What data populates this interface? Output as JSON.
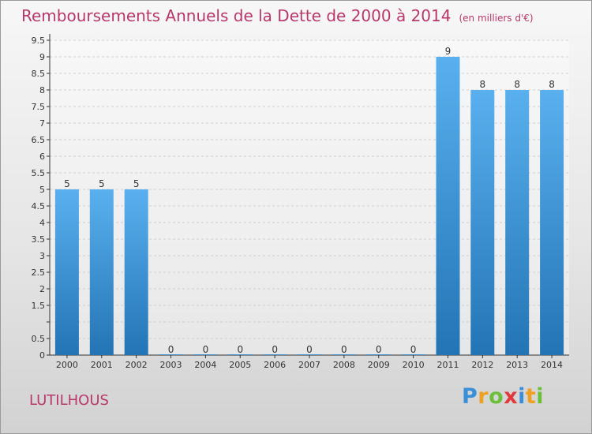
{
  "title": "Remboursements Annuels de la Dette de 2000 à 2014",
  "subtitle": "(en milliers d'€)",
  "location": "LUTILHOUS",
  "logo": {
    "letters": [
      "P",
      "r",
      "o",
      "x",
      "i",
      "t",
      "i"
    ],
    "colors": [
      "#3a8fd8",
      "#f0a020",
      "#6bbf3a",
      "#e03a3a",
      "#3a8fd8",
      "#f0a020",
      "#6bbf3a"
    ]
  },
  "colors": {
    "title": "#b8386b",
    "bar_light": "#5ab0ee",
    "bar_dark": "#2374b4",
    "grid": "#cfcfcf"
  },
  "chart_data": {
    "type": "bar",
    "categories": [
      "2000",
      "2001",
      "2002",
      "2003",
      "2004",
      "2005",
      "2006",
      "2007",
      "2008",
      "2009",
      "2010",
      "2011",
      "2012",
      "2013",
      "2014"
    ],
    "values": [
      5,
      5,
      5,
      0,
      0,
      0,
      0,
      0,
      0,
      0,
      0,
      9,
      8,
      8,
      8
    ],
    "value_labels": [
      "5",
      "5",
      "5",
      "0",
      "0",
      "0",
      "0",
      "0",
      "0",
      "0",
      "0",
      "9",
      "8",
      "8",
      "8"
    ],
    "y_ticks": [
      0,
      0.5,
      1,
      1.5,
      2,
      2.5,
      3,
      3.5,
      4,
      4.5,
      5,
      5.5,
      6,
      6.5,
      7,
      7.5,
      8,
      8.5,
      9,
      9.5
    ],
    "y_tick_labels": [
      "0",
      "0.5",
      "",
      "1.5",
      "2",
      "2.5",
      "3",
      "3.5",
      "4",
      "4.5",
      "5",
      "5.5",
      "6",
      "6.5",
      "7",
      "7.5",
      "8",
      "8.5",
      "9",
      "9.5"
    ],
    "ylim": [
      0,
      9.5
    ],
    "grid": "horizontal dashed",
    "xlabel": "",
    "ylabel": ""
  }
}
